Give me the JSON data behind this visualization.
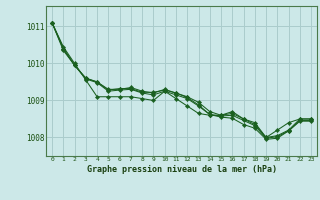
{
  "title": "Graphe pression niveau de la mer (hPa)",
  "background_color": "#cce8e8",
  "plot_bg_color": "#cce8e8",
  "grid_color": "#aacccc",
  "line_color": "#1a6020",
  "marker_color": "#1a6020",
  "xlim": [
    -0.5,
    23.5
  ],
  "ylim": [
    1007.5,
    1011.55
  ],
  "yticks": [
    1008,
    1009,
    1010,
    1011
  ],
  "xticks": [
    0,
    1,
    2,
    3,
    4,
    5,
    6,
    7,
    8,
    9,
    10,
    11,
    12,
    13,
    14,
    15,
    16,
    17,
    18,
    19,
    20,
    21,
    22,
    23
  ],
  "series": [
    [
      1011.1,
      1010.45,
      1010.0,
      1009.55,
      1009.1,
      1009.1,
      1009.1,
      1009.1,
      1009.05,
      1009.0,
      1009.25,
      1009.05,
      1008.85,
      1008.65,
      1008.6,
      1008.6,
      1008.7,
      1008.5,
      1008.4,
      1008.0,
      1008.2,
      1008.4,
      1008.5,
      1008.5
    ],
    [
      1011.1,
      1010.4,
      1009.95,
      1009.6,
      1009.5,
      1009.3,
      1009.3,
      1009.35,
      1009.25,
      1009.2,
      1009.3,
      1009.2,
      1009.1,
      1008.95,
      1008.7,
      1008.6,
      1008.65,
      1008.5,
      1008.35,
      1008.0,
      1008.05,
      1008.2,
      1008.5,
      1008.5
    ],
    [
      1011.1,
      1010.4,
      1009.95,
      1009.6,
      1009.5,
      1009.28,
      1009.32,
      1009.32,
      1009.22,
      1009.22,
      1009.28,
      1009.2,
      1009.08,
      1008.88,
      1008.62,
      1008.58,
      1008.6,
      1008.46,
      1008.32,
      1007.98,
      1008.02,
      1008.18,
      1008.46,
      1008.46
    ],
    [
      1011.1,
      1010.35,
      1009.95,
      1009.58,
      1009.48,
      1009.25,
      1009.28,
      1009.3,
      1009.2,
      1009.15,
      1009.25,
      1009.15,
      1009.05,
      1008.85,
      1008.62,
      1008.55,
      1008.52,
      1008.35,
      1008.25,
      1007.95,
      1007.98,
      1008.18,
      1008.44,
      1008.44
    ]
  ]
}
